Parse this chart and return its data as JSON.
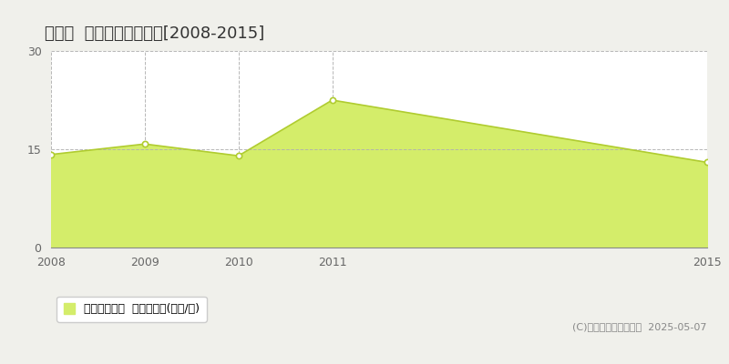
{
  "title": "庄内町  収益物件価格推移[2008-2015]",
  "years": [
    2008,
    2009,
    2010,
    2011,
    2015
  ],
  "values": [
    14.2,
    15.8,
    14.0,
    22.5,
    13.0
  ],
  "ylim": [
    0,
    30
  ],
  "yticks": [
    0,
    15,
    30
  ],
  "fill_color": "#d4ed6a",
  "line_color": "#b0cc30",
  "marker_fill": "#ffffff",
  "marker_edge_color": "#b0cc30",
  "bg_color": "#f0f0eb",
  "plot_bg_color": "#ffffff",
  "grid_color": "#b0b0b0",
  "legend_label": "収益物件価格  平均坪単価(万円/坪)",
  "copyright_text": "(C)土地価格ドットコム  2025-05-07",
  "title_fontsize": 13,
  "tick_fontsize": 9,
  "legend_fontsize": 9,
  "copyright_fontsize": 8,
  "xticks": [
    2008,
    2009,
    2010,
    2011,
    2015
  ]
}
